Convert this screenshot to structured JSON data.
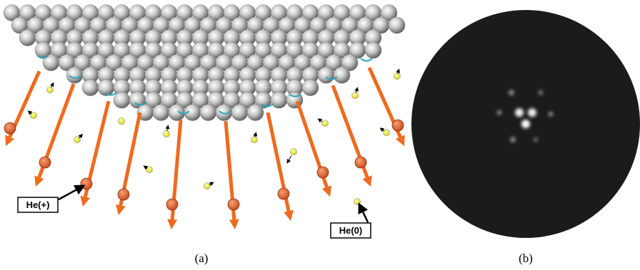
{
  "labels": {
    "ion": "He(+)",
    "neutral": "He(0)"
  },
  "captions": {
    "a": "(a)",
    "b": "(b)"
  }
}
